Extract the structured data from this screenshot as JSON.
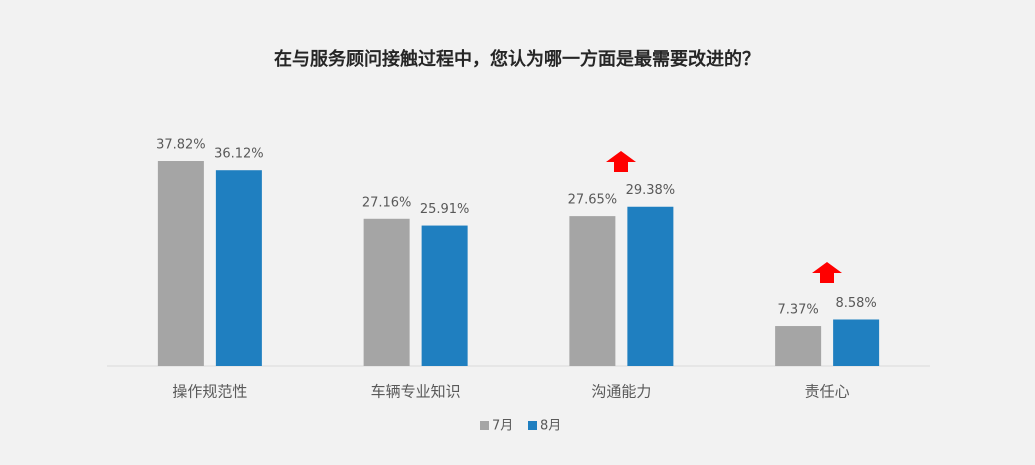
{
  "chart_data": {
    "type": "bar",
    "title": "在与服务顾问接触过程中，您认为哪一方面是最需要改进的？",
    "categories": [
      "操作规范性",
      "车辆专业知识",
      "沟通能力",
      "责任心"
    ],
    "series": [
      {
        "name": "7月",
        "color": "#a5a5a5",
        "values": [
          37.82,
          27.16,
          27.65,
          7.37
        ],
        "value_labels": [
          "37.82%",
          "27.16%",
          "27.65%",
          "7.37%"
        ]
      },
      {
        "name": "8月",
        "color": "#1f7fc0",
        "values": [
          36.12,
          25.91,
          29.38,
          8.58
        ],
        "value_labels": [
          "36.12%",
          "25.91%",
          "29.38%",
          "8.58%"
        ]
      }
    ]
  }
}
